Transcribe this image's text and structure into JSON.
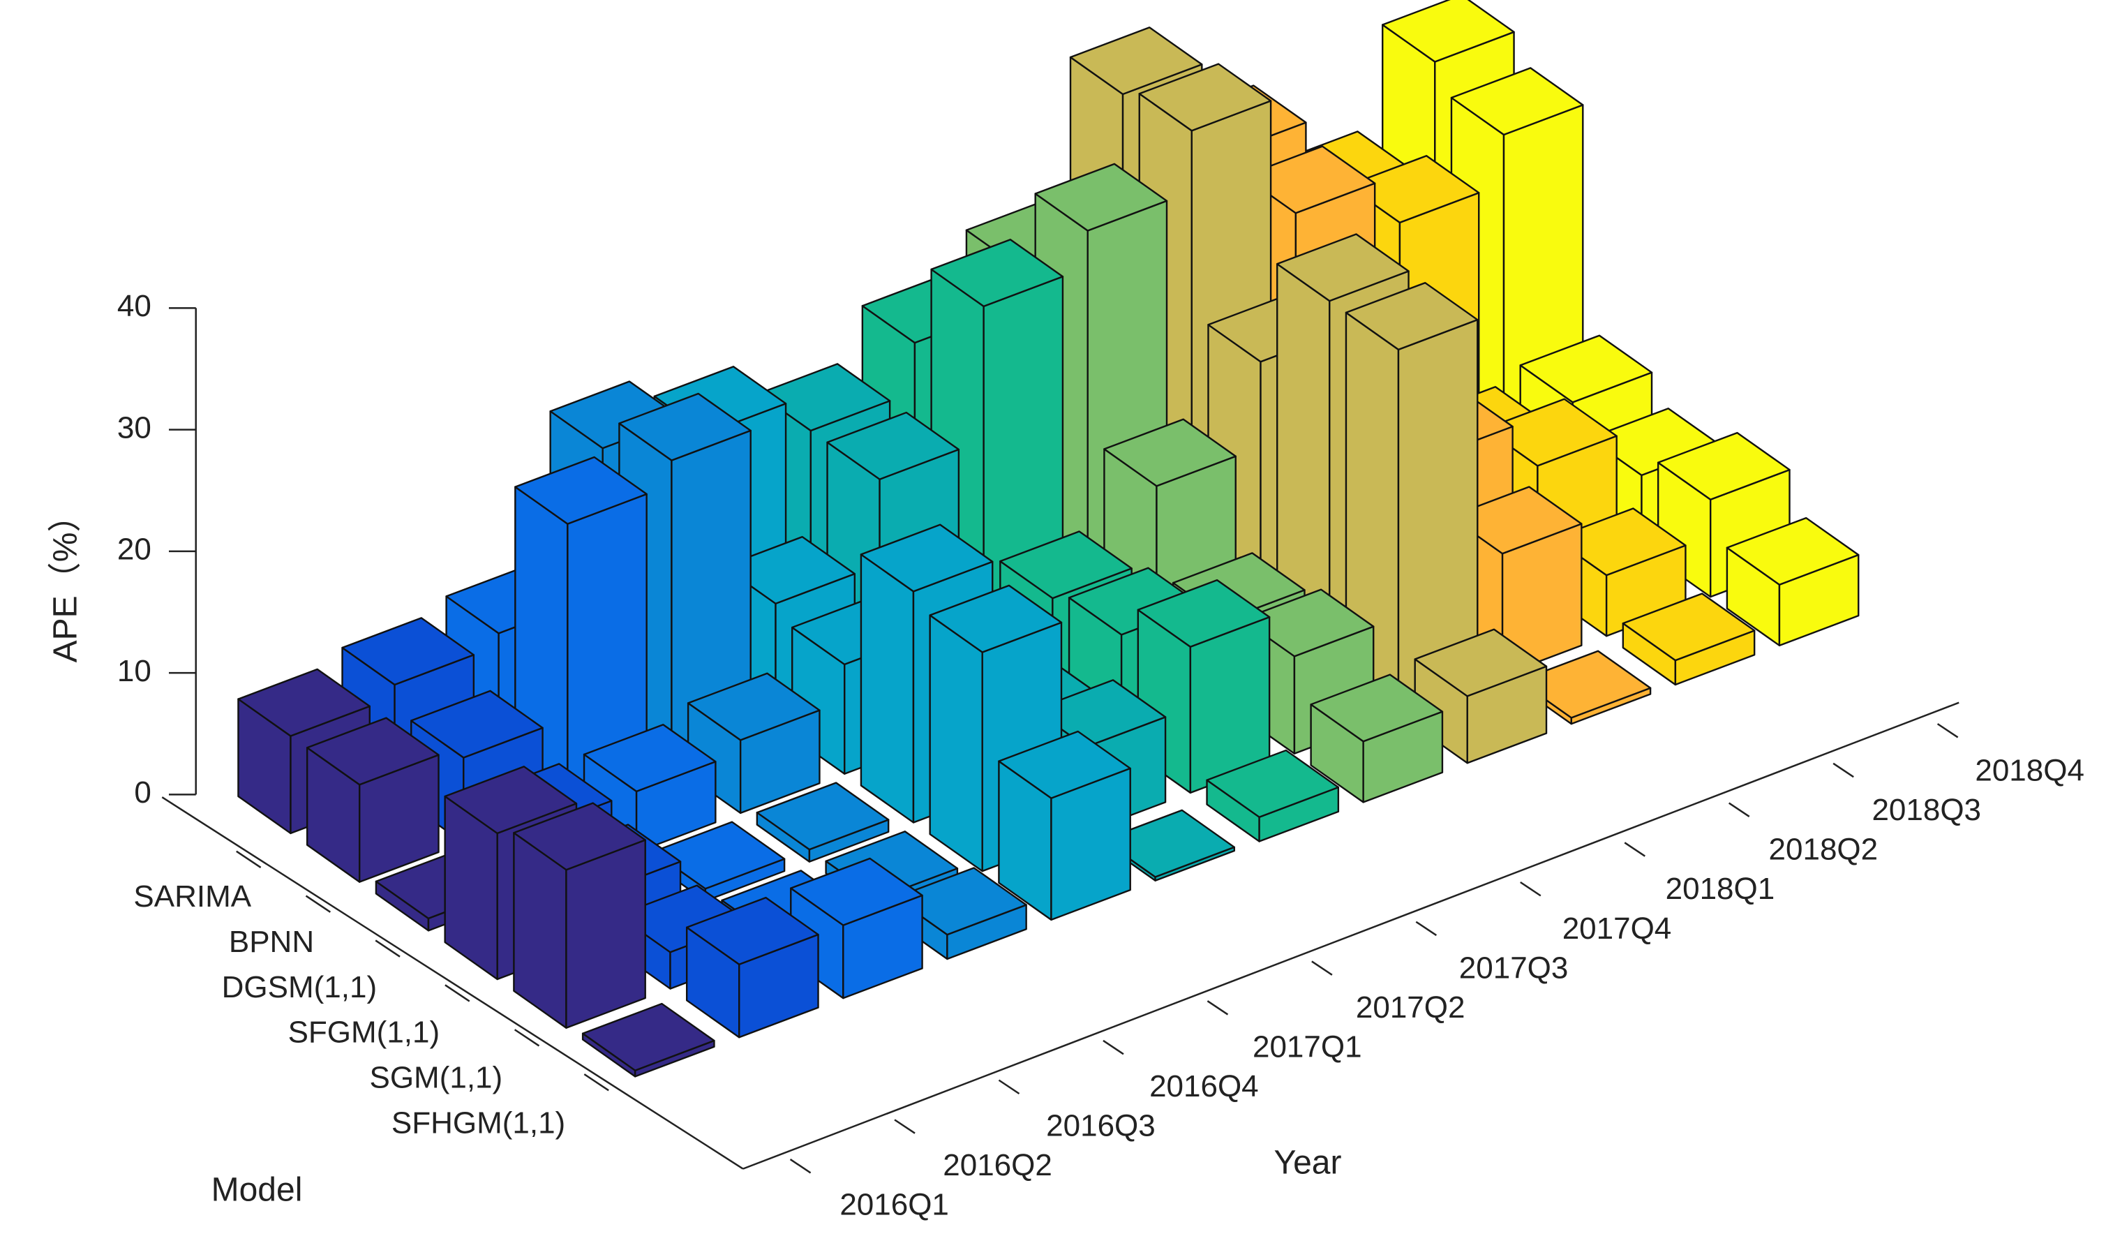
{
  "chart_data": {
    "type": "bar3d",
    "xlabel": "Year",
    "ylabel": "Model",
    "zlabel": "APE（%）",
    "categories": [
      "2016Q1",
      "2016Q2",
      "2016Q3",
      "2016Q4",
      "2017Q1",
      "2017Q2",
      "2017Q3",
      "2017Q4",
      "2018Q1",
      "2018Q2",
      "2018Q3",
      "2018Q4"
    ],
    "colors": [
      "#352a87",
      "#0b50d6",
      "#0a6de6",
      "#0a86d6",
      "#06a4ca",
      "#0aacb0",
      "#14b98e",
      "#7abf6b",
      "#c9b956",
      "#feb335",
      "#fcd60e",
      "#f9fb0e"
    ],
    "series": [
      {
        "name": "SARIMA",
        "values": [
          8,
          9,
          10,
          22,
          20,
          17,
          21,
          24,
          35,
          27,
          20,
          28
        ]
      },
      {
        "name": "BPNN",
        "values": [
          8,
          7,
          23,
          25,
          10,
          17,
          28,
          31,
          36,
          26,
          22,
          26
        ]
      },
      {
        "name": "DGSM(1,1)",
        "values": [
          1,
          5,
          5,
          6,
          9,
          6,
          8,
          14,
          21,
          13,
          7,
          8
        ]
      },
      {
        "name": "SFGM(1,1)",
        "values": [
          12,
          4,
          1,
          1,
          19,
          5,
          9,
          7,
          30,
          14,
          10,
          6
        ]
      },
      {
        "name": "SGM(1,1)",
        "values": [
          13,
          3,
          1,
          1,
          18,
          7,
          12,
          8,
          30,
          10,
          5,
          8
        ]
      },
      {
        "name": "SFHGM(1,1)",
        "values": [
          0.5,
          6,
          6,
          2,
          10,
          0.3,
          2,
          5,
          5.5,
          0.5,
          2,
          5
        ]
      }
    ],
    "zlim": [
      0,
      40
    ],
    "zticks": [
      0,
      10,
      20,
      30,
      40
    ]
  }
}
